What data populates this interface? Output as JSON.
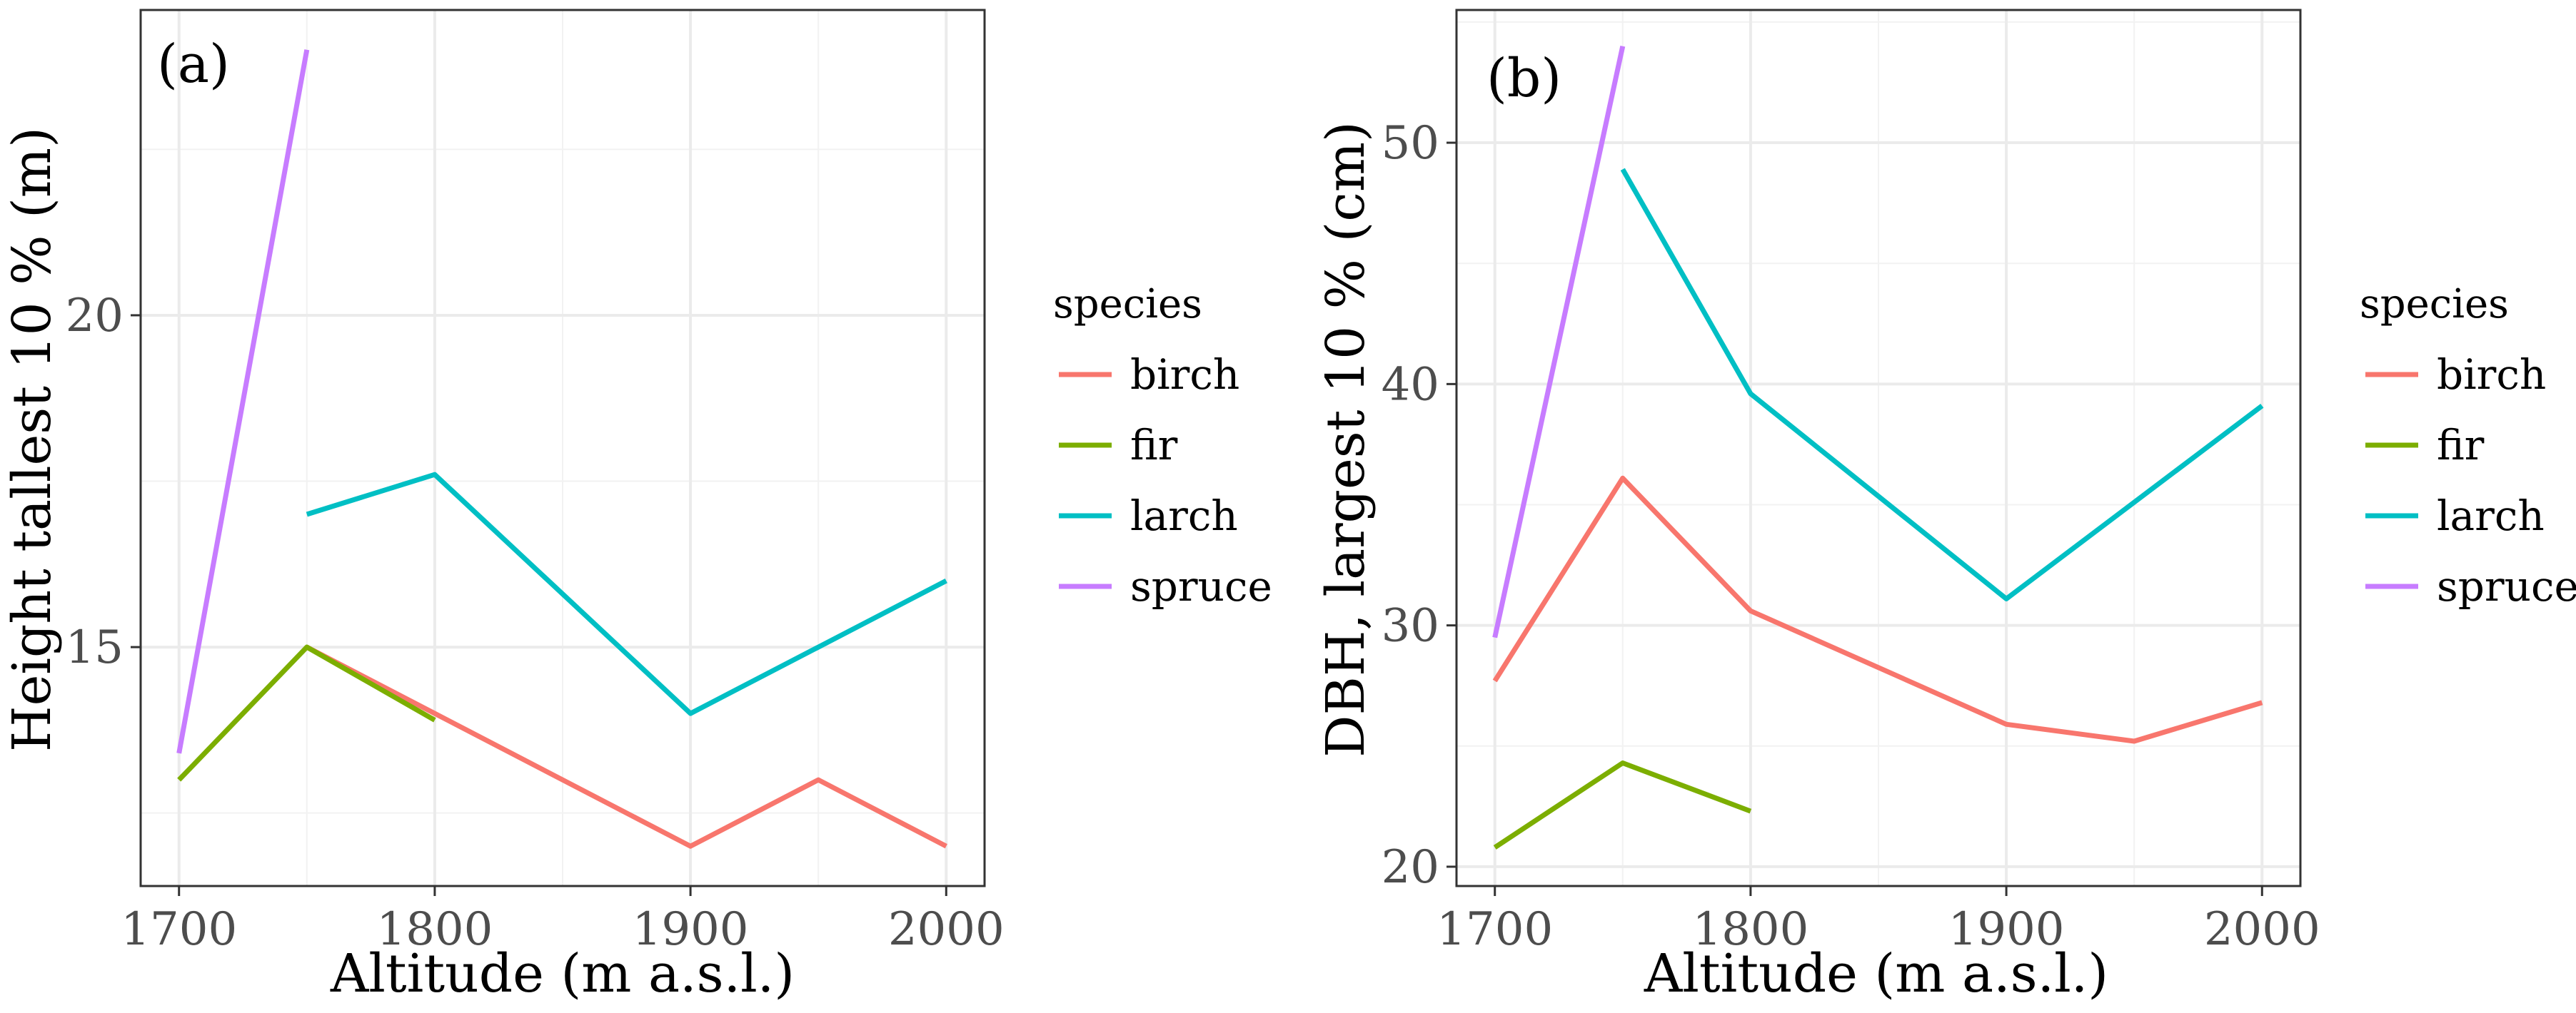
{
  "chart_data": [
    {
      "type": "line",
      "panel_label": "(a)",
      "xlabel": "Altitude (m a.s.l.)",
      "ylabel": "Height tallest 10 % (m)",
      "xlim": [
        1685,
        2015
      ],
      "ylim": [
        11.4,
        24.6
      ],
      "xticks": [
        1700,
        1800,
        1900,
        2000
      ],
      "yticks": [
        15,
        20
      ],
      "y_minor_grid": [
        12.5,
        17.5,
        22.5
      ],
      "x_minor_grid": [
        1750,
        1850,
        1950
      ],
      "grid": true,
      "legend_position": "right",
      "legend_title": "species",
      "series": [
        {
          "name": "birch",
          "color": "#F8766D",
          "x": [
            1750,
            1800,
            1900,
            1950,
            2000
          ],
          "y": [
            15.0,
            14.0,
            12.0,
            13.0,
            12.0
          ]
        },
        {
          "name": "fir",
          "color": "#7CAE00",
          "x": [
            1700,
            1750,
            1800
          ],
          "y": [
            13.0,
            15.0,
            13.9
          ]
        },
        {
          "name": "larch",
          "color": "#00BFC4",
          "x": [
            1750,
            1800,
            1900,
            1950,
            2000
          ],
          "y": [
            17.0,
            17.6,
            14.0,
            15.0,
            16.0
          ]
        },
        {
          "name": "spruce",
          "color": "#C77CFF",
          "x": [
            1700,
            1750
          ],
          "y": [
            13.4,
            24.0
          ]
        }
      ]
    },
    {
      "type": "line",
      "panel_label": "(b)",
      "xlabel": "Altitude (m a.s.l.)",
      "ylabel": "DBH, largest 10 % (cm)",
      "xlim": [
        1685,
        2015
      ],
      "ylim": [
        19.2,
        55.5
      ],
      "xticks": [
        1700,
        1800,
        1900,
        2000
      ],
      "yticks": [
        20,
        30,
        40,
        50
      ],
      "y_minor_grid": [
        25,
        35,
        45,
        55
      ],
      "x_minor_grid": [
        1750,
        1850,
        1950
      ],
      "grid": true,
      "legend_position": "right",
      "legend_title": "species",
      "series": [
        {
          "name": "birch",
          "color": "#F8766D",
          "x": [
            1700,
            1750,
            1800,
            1900,
            1950,
            2000
          ],
          "y": [
            27.7,
            36.1,
            30.6,
            25.9,
            25.2,
            26.8
          ]
        },
        {
          "name": "fir",
          "color": "#7CAE00",
          "x": [
            1700,
            1750,
            1800
          ],
          "y": [
            20.8,
            24.3,
            22.3
          ]
        },
        {
          "name": "larch",
          "color": "#00BFC4",
          "x": [
            1750,
            1800,
            1900,
            2000
          ],
          "y": [
            48.9,
            39.6,
            31.1,
            39.1
          ]
        },
        {
          "name": "spruce",
          "color": "#C77CFF",
          "x": [
            1700,
            1750
          ],
          "y": [
            29.5,
            54.0
          ]
        }
      ]
    }
  ]
}
